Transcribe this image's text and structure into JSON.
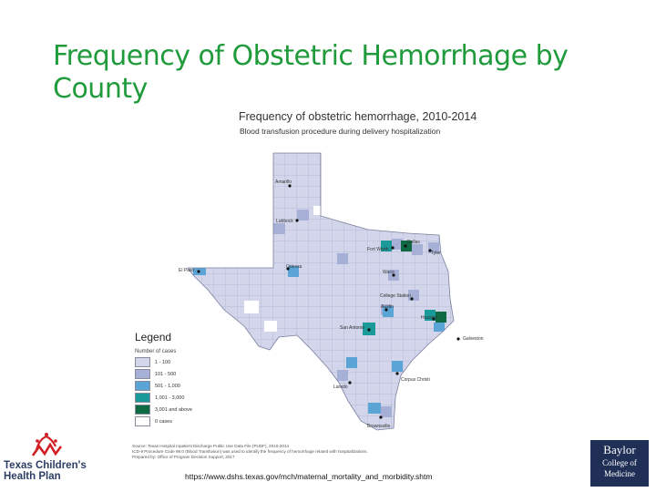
{
  "slide": {
    "title": "Frequency of Obstetric Hemorrhage by County",
    "url": "https://www.dshs.texas.gov/mch/maternal_mortality_and_morbidity.shtm"
  },
  "map": {
    "title": "Frequency of obstetric hemorrhage, 2010-2014",
    "subtitle": "Blood transfusion procedure during delivery hospitalization",
    "cities": [
      {
        "name": "Amarillo"
      },
      {
        "name": "Lubbock"
      },
      {
        "name": "El Paso"
      },
      {
        "name": "Odessa"
      },
      {
        "name": "Fort Worth"
      },
      {
        "name": "Dallas"
      },
      {
        "name": "Tyler"
      },
      {
        "name": "Waco"
      },
      {
        "name": "College Station"
      },
      {
        "name": "Austin"
      },
      {
        "name": "Houston"
      },
      {
        "name": "San Antonio"
      },
      {
        "name": "Galveston"
      },
      {
        "name": "Laredo"
      },
      {
        "name": "Corpus Christi"
      },
      {
        "name": "Brownsville"
      }
    ]
  },
  "legend": {
    "title": "Legend",
    "subtitle": "Number of cases",
    "items": [
      {
        "label": "1 - 100",
        "color": "#d3d6ea"
      },
      {
        "label": "101 - 500",
        "color": "#a6b0d6"
      },
      {
        "label": "501 - 1,000",
        "color": "#5aa4d6"
      },
      {
        "label": "1,001 - 3,000",
        "color": "#1a9a98"
      },
      {
        "label": "3,001 and above",
        "color": "#0e6a43"
      },
      {
        "label": "0 cases",
        "color": "#ffffff"
      }
    ]
  },
  "source": {
    "line1": "Source: Texas Hospital Inpatient Discharge Public Use Data File (PUDF), 2010-2014",
    "line2": "ICD-9 Procedure Code 99.0 (Blood Transfusion) was used to identify the frequency of hemorrhage related with hospitalizations.",
    "line3": "Prepared by: Office of Program Decision Support, 2017"
  },
  "logos": {
    "tch_line1": "Texas Children's",
    "tch_line2": "Health Plan",
    "baylor_line1": "Baylor",
    "baylor_line2": "College of",
    "baylor_line3": "Medicine"
  }
}
